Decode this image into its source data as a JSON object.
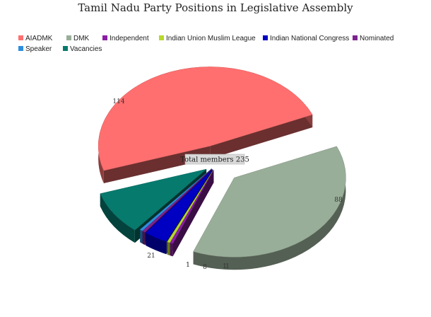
{
  "chart_data": {
    "type": "pie",
    "title": "Tamil Nadu Party Positions in Legislative Assembly",
    "center_label": "Total members 235",
    "legend_placement": "top",
    "three_d": true,
    "exploded": true,
    "slices": [
      {
        "name": "AIADMK",
        "value": 114,
        "label": "114",
        "color": "#ff6f6f"
      },
      {
        "name": "DMK",
        "value": 88,
        "label": "88",
        "color": "#99ae99"
      },
      {
        "name": "Independent",
        "value": 1,
        "label": "1",
        "color": "#8a1fa3"
      },
      {
        "name": "Indian Union Muslim League",
        "value": 1,
        "label": "1",
        "color": "#b7d92a"
      },
      {
        "name": "Indian National Congress",
        "value": 8,
        "label": "8",
        "color": "#0000c2"
      },
      {
        "name": "Nominated",
        "value": 1,
        "label": "1",
        "color": "#7d2290"
      },
      {
        "name": "Speaker",
        "value": 1,
        "label": "1",
        "color": "#2c8ede"
      },
      {
        "name": "Vacancies",
        "value": 21,
        "label": "21",
        "color": "#077a6e"
      }
    ]
  }
}
